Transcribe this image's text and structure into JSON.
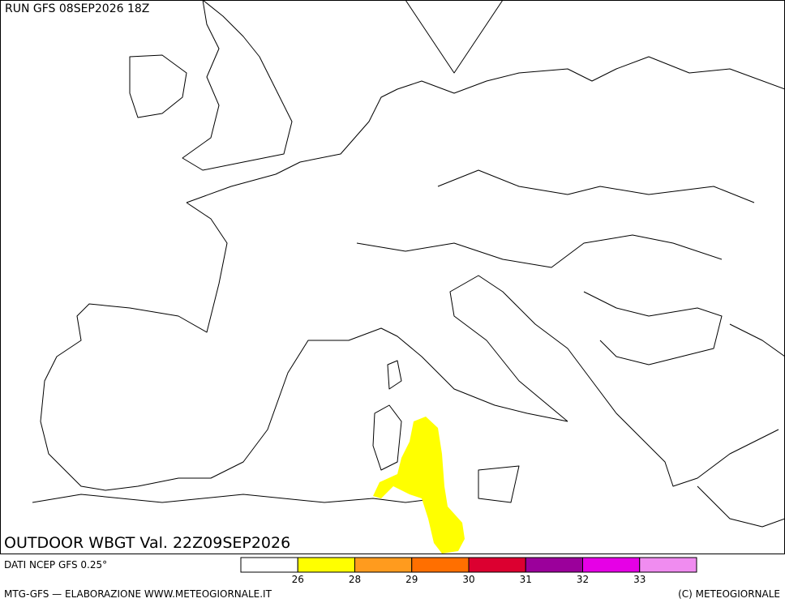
{
  "header": {
    "run": "RUN GFS 08SEP2026 18Z"
  },
  "map": {
    "title": "OUTDOOR WBGT Val. 22Z09SEP2026"
  },
  "legend": {
    "source": "DATI NCEP GFS 0.25°",
    "colors": [
      "#ffffff",
      "#ffff00",
      "#ff9b1e",
      "#ff6f00",
      "#dc0030",
      "#9b009b",
      "#e600e6",
      "#f08cf0"
    ],
    "ticks": [
      "26",
      "28",
      "29",
      "30",
      "31",
      "32",
      "33"
    ]
  },
  "footer": {
    "left": "MTG-GFS — ELABORAZIONE WWW.METEOGIORNALE.IT",
    "right": "(C) METEOGIORNALE"
  }
}
